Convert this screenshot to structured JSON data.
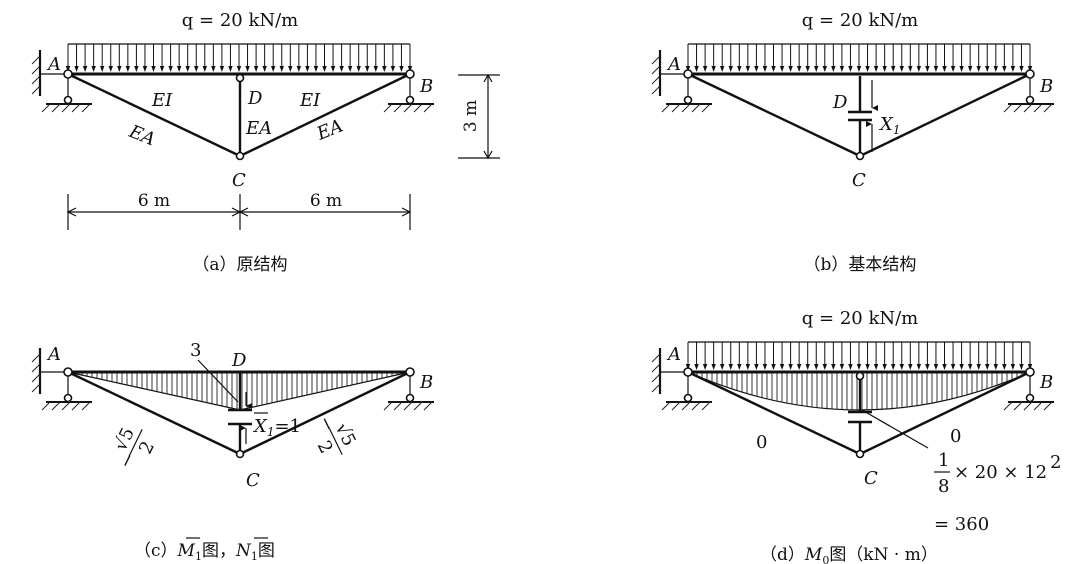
{
  "panel_a": {
    "load": "q = 20 kN/m",
    "node_A": "A",
    "node_B": "B",
    "node_C": "C",
    "node_D": "D",
    "EI_left": "EI",
    "EI_right": "EI",
    "EA_left": "EA",
    "EA_mid": "EA",
    "EA_right": "EA",
    "height_dim": "3 m",
    "span_left": "6 m",
    "span_right": "6 m",
    "caption": "（a）原结构"
  },
  "panel_b": {
    "load": "q = 20 kN/m",
    "node_A": "A",
    "node_B": "B",
    "node_C": "C",
    "node_D": "D",
    "redundant": "X",
    "redundant_sub": "1",
    "caption": "（b）基本结构"
  },
  "panel_c": {
    "node_A": "A",
    "node_B": "B",
    "node_C": "C",
    "node_D": "D",
    "moment_value": "3",
    "unit_force_label": "X",
    "unit_force_sub": "1",
    "unit_force_value": "=1",
    "axial_left_sign": "−",
    "axial_left_num": "√5",
    "axial_left_den": "2",
    "axial_right_sign": "−",
    "axial_right_num": "√5",
    "axial_right_den": "2",
    "caption_prefix": "（c）",
    "caption_M": "M",
    "caption_M_sub": "1",
    "caption_mid": "图，",
    "caption_N": "N",
    "caption_N_sub": "1",
    "caption_end": "图"
  },
  "panel_d": {
    "load": "q = 20 kN/m",
    "node_A": "A",
    "node_B": "B",
    "node_C": "C",
    "zero_left": "0",
    "zero_right": "0",
    "frac_num": "1",
    "frac_den": "8",
    "formula_rest": "× 20 × 12",
    "formula_exp": "2",
    "result": "= 360",
    "caption_prefix": "（d）",
    "caption_M": "M",
    "caption_M_sub": "0",
    "caption_end": "图（kN · m）"
  }
}
